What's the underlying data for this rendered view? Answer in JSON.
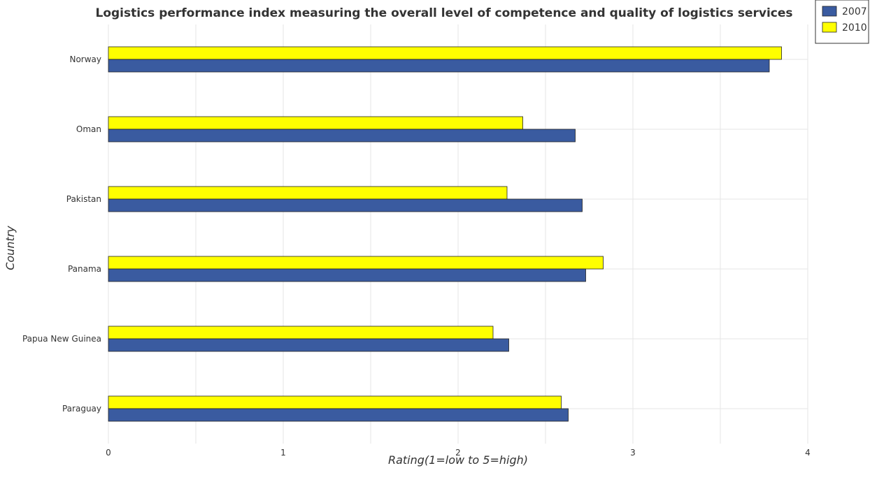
{
  "chart_data": {
    "type": "bar",
    "orientation": "horizontal",
    "title": "Logistics performance index measuring the overall level of competence and quality of logistics services",
    "xlabel": "Rating(1=low to 5=high)",
    "ylabel": "Country",
    "xlim": [
      0,
      4
    ],
    "xticks": [
      "0",
      "1",
      "2",
      "3",
      "4"
    ],
    "grid": true,
    "legend_position": "top-right",
    "categories": [
      "Norway",
      "Oman",
      "Pakistan",
      "Panama",
      "Papua New Guinea",
      "Paraguay"
    ],
    "series": [
      {
        "name": "2007",
        "color": "#3a5ba0",
        "values": [
          3.78,
          2.67,
          2.71,
          2.73,
          2.29,
          2.63
        ]
      },
      {
        "name": "2010",
        "color": "#ffff00",
        "values": [
          3.85,
          2.37,
          2.28,
          2.83,
          2.2,
          2.59
        ]
      }
    ]
  }
}
